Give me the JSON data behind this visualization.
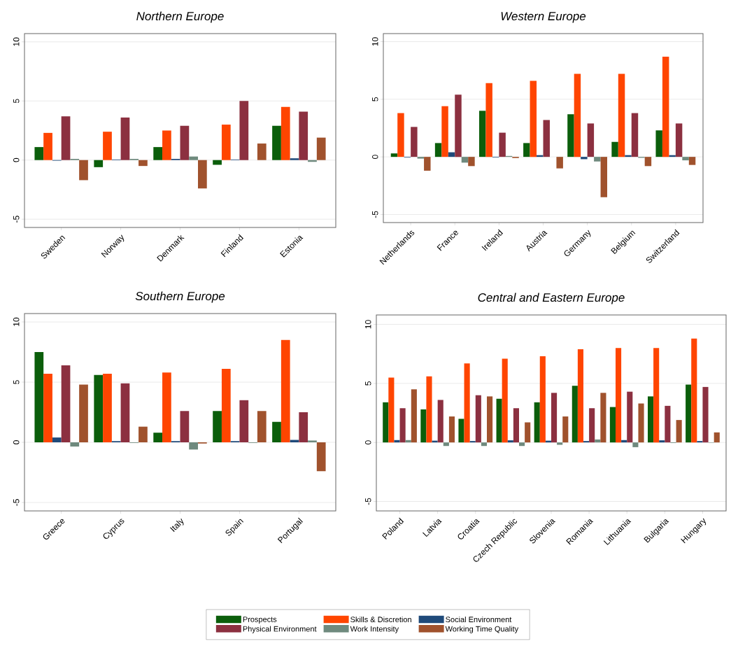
{
  "chart_data": [
    {
      "type": "bar",
      "title": "Northern Europe",
      "categories": [
        "Sweden",
        "Norway",
        "Denmark",
        "Finland",
        "Estonia"
      ],
      "ylim": [
        -5.7,
        10.7
      ],
      "yticks": [
        -5,
        0,
        5,
        10
      ],
      "grid": "y",
      "series": [
        {
          "color": "#0b5e0b",
          "values": [
            1.1,
            -0.6,
            1.1,
            -0.4,
            2.9
          ]
        },
        {
          "color": "#ff4500",
          "values": [
            2.3,
            2.4,
            2.5,
            3.0,
            4.5
          ]
        },
        {
          "color": "#1f4a7a",
          "values": [
            -0.05,
            0.05,
            0.1,
            0.05,
            0.15
          ]
        },
        {
          "color": "#8c3040",
          "values": [
            3.7,
            3.6,
            2.9,
            5.0,
            4.1
          ]
        },
        {
          "color": "#6f8a7e",
          "values": [
            0.1,
            0.1,
            0.3,
            null,
            -0.15
          ]
        },
        {
          "color": "#a0522d",
          "values": [
            -1.7,
            -0.5,
            -2.4,
            1.4,
            1.9
          ]
        }
      ]
    },
    {
      "type": "bar",
      "title": "Western Europe",
      "categories": [
        "Netherlands",
        "France",
        "Ireland",
        "Austria",
        "Germany",
        "Belgium",
        "Switzerland"
      ],
      "ylim": [
        -5.7,
        10.7
      ],
      "yticks": [
        -5,
        0,
        5,
        10
      ],
      "grid": "y",
      "series": [
        {
          "color": "#0b5e0b",
          "values": [
            0.3,
            1.2,
            4.0,
            1.2,
            3.7,
            1.3,
            2.3
          ]
        },
        {
          "color": "#ff4500",
          "values": [
            3.8,
            4.4,
            6.4,
            6.6,
            7.2,
            7.2,
            8.7
          ]
        },
        {
          "color": "#1f4a7a",
          "values": [
            -0.05,
            0.4,
            -0.05,
            0.15,
            -0.2,
            0.15,
            0.15
          ]
        },
        {
          "color": "#8c3040",
          "values": [
            2.6,
            5.4,
            2.1,
            3.2,
            2.9,
            3.8,
            2.9
          ]
        },
        {
          "color": "#6f8a7e",
          "values": [
            -0.15,
            -0.5,
            0.08,
            null,
            -0.4,
            -0.08,
            -0.3
          ]
        },
        {
          "color": "#a0522d",
          "values": [
            -1.2,
            -0.8,
            -0.1,
            -1.0,
            -3.5,
            -0.8,
            -0.7
          ]
        }
      ]
    },
    {
      "type": "bar",
      "title": "Southern Europe",
      "categories": [
        "Greece",
        "Cyprus",
        "Italy",
        "Spain",
        "Portugal"
      ],
      "ylim": [
        -5.7,
        10.7
      ],
      "yticks": [
        -5,
        0,
        5,
        10
      ],
      "grid": "y",
      "series": [
        {
          "color": "#0b5e0b",
          "values": [
            7.5,
            5.6,
            0.8,
            2.6,
            1.7
          ]
        },
        {
          "color": "#ff4500",
          "values": [
            5.7,
            5.7,
            5.8,
            6.1,
            8.5
          ]
        },
        {
          "color": "#1f4a7a",
          "values": [
            0.4,
            0.1,
            0.1,
            0.1,
            0.2
          ]
        },
        {
          "color": "#8c3040",
          "values": [
            6.4,
            4.9,
            2.6,
            3.5,
            2.5
          ]
        },
        {
          "color": "#6f8a7e",
          "values": [
            -0.35,
            -0.05,
            -0.6,
            -0.05,
            0.15
          ]
        },
        {
          "color": "#a0522d",
          "values": [
            4.8,
            1.3,
            -0.1,
            2.6,
            -2.4
          ]
        }
      ]
    },
    {
      "type": "bar",
      "title": "Central and Eastern Europe",
      "categories": [
        "Poland",
        "Latvia",
        "Croatia",
        "Czech Republic",
        "Slovenia",
        "Romania",
        "Lithuania",
        "Bulgaria",
        "Hungary"
      ],
      "ylim": [
        -5.8,
        10.8
      ],
      "yticks": [
        -5,
        0,
        5,
        10
      ],
      "grid": "y",
      "legend": "bottom",
      "series": [
        {
          "name": "Prospects",
          "color": "#0b5e0b",
          "values": [
            3.4,
            2.8,
            2.0,
            3.7,
            3.4,
            4.8,
            3.0,
            3.9,
            4.9
          ]
        },
        {
          "name": "Skills & Discretion",
          "color": "#ff4500",
          "values": [
            5.5,
            5.6,
            6.7,
            7.1,
            7.3,
            7.9,
            8.0,
            8.0,
            8.8
          ]
        },
        {
          "name": "Social Environment",
          "color": "#1f4a7a",
          "values": [
            0.2,
            0.15,
            0.12,
            0.18,
            0.15,
            0.12,
            0.2,
            0.18,
            0.12
          ]
        },
        {
          "name": "Physical Environment",
          "color": "#8c3040",
          "values": [
            2.9,
            3.6,
            4.0,
            2.9,
            4.2,
            2.9,
            4.3,
            3.1,
            4.7
          ]
        },
        {
          "name": "Work Intensity",
          "color": "#6f8a7e",
          "values": [
            0.2,
            -0.3,
            -0.3,
            -0.3,
            -0.2,
            0.25,
            -0.4,
            -0.05,
            -0.03
          ]
        },
        {
          "name": "Working Time Quality",
          "color": "#a0522d",
          "values": [
            4.5,
            2.2,
            3.9,
            1.7,
            2.2,
            4.2,
            3.3,
            1.9,
            0.85
          ]
        }
      ]
    }
  ]
}
